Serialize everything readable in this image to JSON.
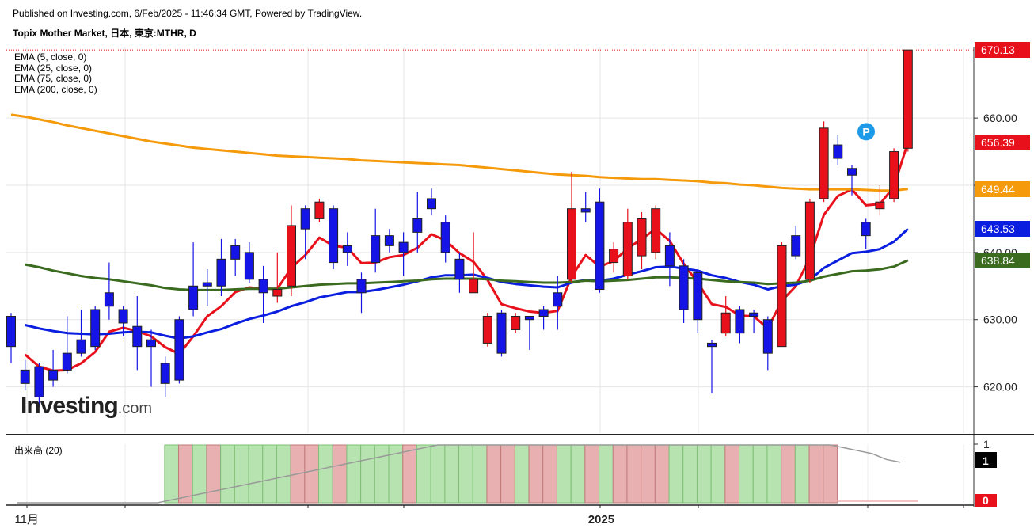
{
  "header": {
    "published": "Published on Investing.com, 6/Feb/2025 - 11:46:34 GMT, Powered by TradingView.",
    "title": "Topix Mother Market, 日本, 東京:MTHR, D"
  },
  "legend": [
    {
      "label": "EMA (5, close, 0)",
      "color": "#e8101a"
    },
    {
      "label": "EMA (25, close, 0)",
      "color": "#0a1ee0"
    },
    {
      "label": "EMA (75, close, 0)",
      "color": "#3a6b1e"
    },
    {
      "label": "EMA (200, close, 0)",
      "color": "#f59a0b"
    }
  ],
  "volume_label": "出来高 (20)",
  "logo": {
    "main": "Investing",
    "suffix": ".com"
  },
  "price_tags": [
    {
      "text": "670.13",
      "value": 670.13,
      "color": "#e8101a"
    },
    {
      "text": "656.39",
      "value": 656.39,
      "color": "#e8101a"
    },
    {
      "text": "649.44",
      "value": 649.44,
      "color": "#f59a0b"
    },
    {
      "text": "643.53",
      "value": 643.53,
      "color": "#0a1ee0"
    },
    {
      "text": "638.84",
      "value": 638.84,
      "color": "#3a6b1e"
    }
  ],
  "volume_axis": {
    "top_label": "1",
    "mid_tag": "1",
    "bottom_tag": "0"
  },
  "x_labels": [
    {
      "text": "11月",
      "i": 1
    },
    {
      "text": "2025",
      "i": 42
    }
  ],
  "chart_data": {
    "type": "candlestick",
    "y_ticks": [
      620,
      630,
      640,
      650,
      660
    ],
    "y_tick_labels": [
      "620.00",
      "630.00",
      "640.00",
      "650.00",
      "660.00"
    ],
    "ylim": [
      613,
      670.5
    ],
    "marker": "P",
    "candles": [
      {
        "o": 630.5,
        "c": 626.0,
        "h": 631.0,
        "l": 623.5
      },
      {
        "o": 622.5,
        "c": 620.5,
        "h": 624.0,
        "l": 619.5
      },
      {
        "o": 623.0,
        "c": 618.5,
        "h": 623.5,
        "l": 617.0
      },
      {
        "o": 622.5,
        "c": 621.0,
        "h": 625.5,
        "l": 620.0
      },
      {
        "o": 625.0,
        "c": 622.5,
        "h": 630.5,
        "l": 622.0
      },
      {
        "o": 627.0,
        "c": 625.0,
        "h": 631.5,
        "l": 624.5
      },
      {
        "o": 631.5,
        "c": 626.0,
        "h": 632.0,
        "l": 625.5
      },
      {
        "o": 634.0,
        "c": 632.0,
        "h": 638.5,
        "l": 630.0
      },
      {
        "o": 631.5,
        "c": 629.5,
        "h": 632.0,
        "l": 627.5
      },
      {
        "o": 629.0,
        "c": 626.0,
        "h": 633.5,
        "l": 622.5
      },
      {
        "o": 627.0,
        "c": 626.0,
        "h": 628.5,
        "l": 620.0
      },
      {
        "o": 623.5,
        "c": 620.5,
        "h": 624.5,
        "l": 618.5
      },
      {
        "o": 630.0,
        "c": 621.0,
        "h": 630.5,
        "l": 620.5
      },
      {
        "o": 635.0,
        "c": 631.5,
        "h": 641.5,
        "l": 630.5
      },
      {
        "o": 635.5,
        "c": 635.0,
        "h": 637.5,
        "l": 632.0
      },
      {
        "o": 639.0,
        "c": 635.0,
        "h": 642.0,
        "l": 633.5
      },
      {
        "o": 641.0,
        "c": 639.0,
        "h": 642.0,
        "l": 636.5
      },
      {
        "o": 640.0,
        "c": 636.0,
        "h": 641.5,
        "l": 635.5
      },
      {
        "o": 636.0,
        "c": 634.0,
        "h": 638.0,
        "l": 629.5
      },
      {
        "o": 633.5,
        "c": 634.5,
        "h": 640.0,
        "l": 632.5
      },
      {
        "o": 635.0,
        "c": 644.0,
        "h": 647.0,
        "l": 633.5
      },
      {
        "o": 646.5,
        "c": 643.5,
        "h": 647.0,
        "l": 639.0
      },
      {
        "o": 645.0,
        "c": 647.5,
        "h": 648.0,
        "l": 644.5
      },
      {
        "o": 646.5,
        "c": 638.5,
        "h": 647.0,
        "l": 637.5
      },
      {
        "o": 641.0,
        "c": 640.0,
        "h": 643.0,
        "l": 638.0
      },
      {
        "o": 636.0,
        "c": 634.0,
        "h": 637.0,
        "l": 631.0
      },
      {
        "o": 642.5,
        "c": 638.5,
        "h": 646.5,
        "l": 637.0
      },
      {
        "o": 642.5,
        "c": 641.0,
        "h": 643.5,
        "l": 640.0
      },
      {
        "o": 641.5,
        "c": 640.0,
        "h": 643.0,
        "l": 636.5
      },
      {
        "o": 645.0,
        "c": 643.0,
        "h": 649.0,
        "l": 640.0
      },
      {
        "o": 648.0,
        "c": 646.5,
        "h": 649.5,
        "l": 645.5
      },
      {
        "o": 644.5,
        "c": 640.0,
        "h": 645.5,
        "l": 638.5
      },
      {
        "o": 639.0,
        "c": 636.0,
        "h": 640.0,
        "l": 634.0
      },
      {
        "o": 634.0,
        "c": 636.0,
        "h": 643.0,
        "l": 634.0
      },
      {
        "o": 626.5,
        "c": 630.5,
        "h": 631.0,
        "l": 626.0
      },
      {
        "o": 631.0,
        "c": 625.0,
        "h": 631.5,
        "l": 624.5
      },
      {
        "o": 628.5,
        "c": 630.5,
        "h": 631.0,
        "l": 628.0
      },
      {
        "o": 630.5,
        "c": 630.0,
        "h": 630.5,
        "l": 625.5
      },
      {
        "o": 631.5,
        "c": 630.5,
        "h": 632.0,
        "l": 628.5
      },
      {
        "o": 634.0,
        "c": 632.0,
        "h": 636.5,
        "l": 628.5
      },
      {
        "o": 636.0,
        "c": 646.5,
        "h": 652.0,
        "l": 635.5
      },
      {
        "o": 646.5,
        "c": 646.0,
        "h": 649.0,
        "l": 644.5
      },
      {
        "o": 647.5,
        "c": 634.5,
        "h": 649.5,
        "l": 634.0
      },
      {
        "o": 638.5,
        "c": 640.5,
        "h": 641.5,
        "l": 637.0
      },
      {
        "o": 636.5,
        "c": 644.5,
        "h": 646.5,
        "l": 636.0
      },
      {
        "o": 639.5,
        "c": 645.0,
        "h": 646.0,
        "l": 637.5
      },
      {
        "o": 640.0,
        "c": 646.5,
        "h": 647.0,
        "l": 639.0
      },
      {
        "o": 641.0,
        "c": 638.0,
        "h": 643.0,
        "l": 635.0
      },
      {
        "o": 638.0,
        "c": 631.5,
        "h": 639.0,
        "l": 629.5
      },
      {
        "o": 637.0,
        "c": 630.0,
        "h": 637.5,
        "l": 628.0
      },
      {
        "o": 626.5,
        "c": 626.0,
        "h": 627.0,
        "l": 619.0
      },
      {
        "o": 628.0,
        "c": 631.0,
        "h": 633.5,
        "l": 627.5
      },
      {
        "o": 631.5,
        "c": 628.0,
        "h": 632.0,
        "l": 626.5
      },
      {
        "o": 631.0,
        "c": 630.5,
        "h": 631.5,
        "l": 628.0
      },
      {
        "o": 630.0,
        "c": 625.0,
        "h": 630.5,
        "l": 622.5
      },
      {
        "o": 626.0,
        "c": 641.0,
        "h": 641.5,
        "l": 626.0
      },
      {
        "o": 642.5,
        "c": 639.5,
        "h": 644.0,
        "l": 639.0
      },
      {
        "o": 636.0,
        "c": 647.5,
        "h": 648.0,
        "l": 635.5
      },
      {
        "o": 648.0,
        "c": 658.5,
        "h": 659.5,
        "l": 647.5
      },
      {
        "o": 656.0,
        "c": 654.0,
        "h": 657.5,
        "l": 653.0
      },
      {
        "o": 652.5,
        "c": 651.5,
        "h": 653.0,
        "l": 648.5
      },
      {
        "o": 644.5,
        "c": 642.5,
        "h": 645.0,
        "l": 640.5
      },
      {
        "o": 646.5,
        "c": 647.5,
        "h": 650.0,
        "l": 645.5
      },
      {
        "o": 648.0,
        "c": 655.0,
        "h": 655.5,
        "l": 647.5
      },
      {
        "o": 655.5,
        "c": 670.13,
        "h": 670.13,
        "l": 655.0
      }
    ],
    "series": [
      {
        "name": "EMA (5, close, 0)",
        "color": "#e8101a",
        "values": [
          null,
          624.8,
          623.0,
          622.4,
          622.5,
          623.5,
          625.2,
          628.2,
          628.8,
          628.3,
          627.5,
          625.9,
          624.9,
          627.5,
          630.5,
          632.0,
          634.1,
          634.8,
          634.6,
          634.6,
          637.7,
          639.6,
          642.2,
          641.0,
          640.7,
          638.4,
          638.5,
          639.3,
          639.6,
          640.7,
          642.7,
          641.8,
          639.9,
          638.6,
          635.9,
          632.3,
          631.7,
          631.2,
          631.0,
          631.3,
          636.4,
          639.6,
          637.9,
          638.7,
          640.6,
          642.0,
          643.5,
          641.7,
          638.3,
          635.5,
          632.3,
          631.9,
          630.6,
          630.5,
          628.7,
          632.8,
          635.0,
          639.2,
          645.6,
          648.4,
          649.4,
          647.0,
          647.2,
          649.8,
          656.4
        ]
      },
      {
        "name": "EMA (25, close, 0)",
        "color": "#0a1ee0",
        "values": [
          null,
          629.2,
          628.7,
          628.3,
          628.0,
          627.9,
          627.8,
          627.9,
          628.1,
          628.2,
          628.1,
          627.6,
          627.2,
          627.5,
          628.1,
          628.6,
          629.4,
          630.1,
          630.6,
          631.2,
          632.0,
          632.6,
          633.3,
          633.7,
          634.1,
          634.1,
          634.4,
          634.8,
          635.2,
          635.7,
          636.3,
          636.6,
          636.6,
          636.7,
          636.2,
          635.6,
          635.3,
          635.1,
          634.9,
          634.8,
          635.5,
          635.9,
          635.8,
          636.1,
          636.7,
          637.2,
          637.8,
          637.9,
          637.6,
          637.3,
          636.6,
          636.2,
          635.6,
          635.2,
          634.5,
          635.0,
          635.2,
          635.9,
          637.7,
          638.8,
          639.9,
          640.1,
          640.5,
          641.6,
          643.5
        ]
      },
      {
        "name": "EMA (75, close, 0)",
        "color": "#3a6b1e",
        "values": [
          null,
          638.2,
          637.8,
          637.3,
          636.9,
          636.5,
          636.2,
          636.0,
          635.7,
          635.4,
          635.1,
          634.7,
          634.5,
          634.4,
          634.4,
          634.4,
          634.5,
          634.6,
          634.6,
          634.6,
          634.8,
          635.0,
          635.2,
          635.3,
          635.4,
          635.4,
          635.5,
          635.6,
          635.7,
          635.8,
          636.0,
          636.1,
          636.1,
          636.1,
          636.0,
          635.8,
          635.7,
          635.6,
          635.5,
          635.5,
          635.6,
          635.8,
          635.7,
          635.8,
          635.9,
          636.1,
          636.3,
          636.3,
          636.2,
          636.1,
          635.9,
          635.7,
          635.6,
          635.5,
          635.3,
          635.4,
          635.5,
          635.8,
          636.4,
          636.8,
          637.2,
          637.3,
          637.5,
          637.9,
          638.84
        ]
      },
      {
        "name": "EMA (200, close, 0)",
        "color": "#f59a0b",
        "values": [
          660.5,
          660.2,
          659.8,
          659.4,
          658.9,
          658.5,
          658.1,
          657.7,
          657.3,
          656.9,
          656.5,
          656.2,
          655.9,
          655.6,
          655.4,
          655.2,
          655.0,
          654.8,
          654.6,
          654.4,
          654.3,
          654.2,
          654.1,
          654.0,
          653.9,
          653.7,
          653.6,
          653.5,
          653.4,
          653.3,
          653.2,
          653.1,
          653.0,
          652.8,
          652.6,
          652.4,
          652.2,
          652.0,
          651.8,
          651.6,
          651.5,
          651.4,
          651.2,
          651.1,
          651.0,
          650.9,
          650.9,
          650.8,
          650.7,
          650.6,
          650.4,
          650.3,
          650.1,
          650.0,
          649.8,
          649.6,
          649.5,
          649.4,
          649.4,
          649.4,
          649.4,
          649.3,
          649.2,
          649.2,
          649.44
        ]
      }
    ],
    "volume": {
      "bars": [
        {
          "i": 11,
          "up": true
        },
        {
          "i": 12,
          "up": false
        },
        {
          "i": 13,
          "up": true
        },
        {
          "i": 14,
          "up": false
        },
        {
          "i": 15,
          "up": true
        },
        {
          "i": 16,
          "up": true
        },
        {
          "i": 17,
          "up": true
        },
        {
          "i": 18,
          "up": true
        },
        {
          "i": 19,
          "up": true
        },
        {
          "i": 20,
          "up": false
        },
        {
          "i": 21,
          "up": false
        },
        {
          "i": 22,
          "up": true
        },
        {
          "i": 23,
          "up": false
        },
        {
          "i": 24,
          "up": true
        },
        {
          "i": 25,
          "up": true
        },
        {
          "i": 26,
          "up": true
        },
        {
          "i": 27,
          "up": true
        },
        {
          "i": 28,
          "up": false
        },
        {
          "i": 29,
          "up": true
        },
        {
          "i": 30,
          "up": true
        },
        {
          "i": 31,
          "up": true
        },
        {
          "i": 32,
          "up": true
        },
        {
          "i": 33,
          "up": true
        },
        {
          "i": 34,
          "up": false
        },
        {
          "i": 35,
          "up": false
        },
        {
          "i": 36,
          "up": true
        },
        {
          "i": 37,
          "up": false
        },
        {
          "i": 38,
          "up": false
        },
        {
          "i": 39,
          "up": true
        },
        {
          "i": 40,
          "up": true
        },
        {
          "i": 41,
          "up": false
        },
        {
          "i": 42,
          "up": true
        },
        {
          "i": 43,
          "up": false
        },
        {
          "i": 44,
          "up": false
        },
        {
          "i": 45,
          "up": false
        },
        {
          "i": 46,
          "up": false
        },
        {
          "i": 47,
          "up": true
        },
        {
          "i": 48,
          "up": true
        },
        {
          "i": 49,
          "up": true
        },
        {
          "i": 50,
          "up": true
        },
        {
          "i": 51,
          "up": false
        },
        {
          "i": 52,
          "up": true
        },
        {
          "i": 53,
          "up": true
        },
        {
          "i": 54,
          "up": true
        },
        {
          "i": 55,
          "up": false
        },
        {
          "i": 56,
          "up": true
        },
        {
          "i": 57,
          "up": false
        },
        {
          "i": 58,
          "up": false
        }
      ],
      "ma": [
        0,
        0,
        0,
        0,
        0,
        0,
        0,
        0,
        0,
        0,
        0,
        0.05,
        0.1,
        0.15,
        0.2,
        0.25,
        0.3,
        0.35,
        0.4,
        0.45,
        0.5,
        0.55,
        0.6,
        0.65,
        0.7,
        0.75,
        0.8,
        0.85,
        0.9,
        0.95,
        1,
        1,
        1,
        1,
        1,
        1,
        1,
        1,
        1,
        1,
        1,
        1,
        1,
        1,
        1,
        1,
        1,
        1,
        1,
        1,
        1,
        1,
        1,
        1,
        1,
        1,
        1,
        1,
        1,
        0.95,
        0.9,
        0.85,
        0.75,
        0.7
      ]
    }
  }
}
